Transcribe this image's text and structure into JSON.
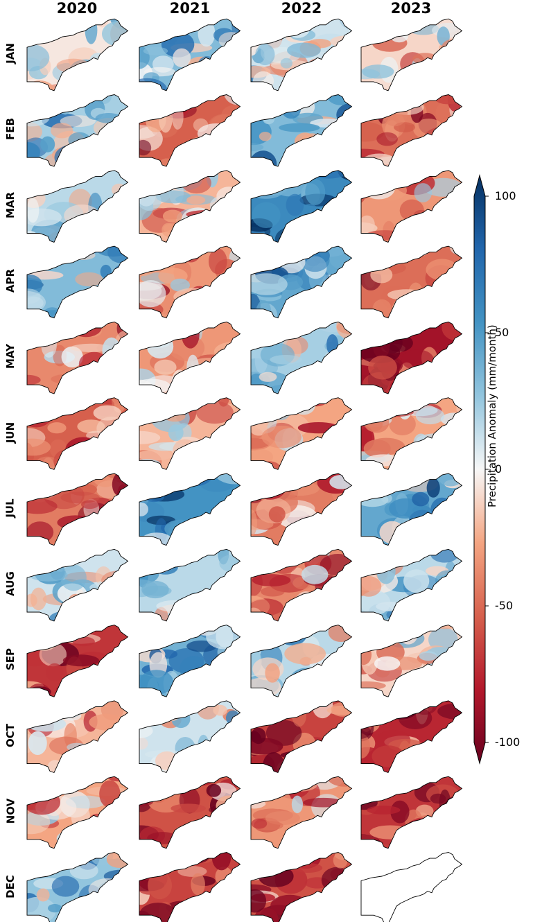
{
  "columns": [
    "2020",
    "2021",
    "2022",
    "2023"
  ],
  "rows": [
    "JAN",
    "FEB",
    "MAR",
    "APR",
    "MAY",
    "JUN",
    "JUL",
    "AUG",
    "SEP",
    "OCT",
    "NOV",
    "DEC"
  ],
  "colorbar": {
    "label": "Precipitation Anomaly (mm/month)",
    "ticks": [
      "100",
      "50",
      "0",
      "-50",
      "-100"
    ],
    "tick_values": [
      100,
      50,
      0,
      -50,
      -100
    ],
    "range": [
      -100,
      100
    ],
    "colormap": "RdBu",
    "extend": "both"
  },
  "colors": {
    "strong_blue": "#08306b",
    "blue": "#2166ac",
    "light_blue": "#92c5de",
    "white": "#f7f7f7",
    "light_red": "#f4a582",
    "red": "#d6604d",
    "strong_red": "#67001f"
  },
  "panel_mean_anomaly": [
    [
      -5,
      30,
      10,
      -10
    ],
    [
      20,
      -50,
      30,
      -45
    ],
    [
      15,
      -20,
      55,
      -30
    ],
    [
      30,
      -30,
      40,
      -45
    ],
    [
      -35,
      -30,
      20,
      -80
    ],
    [
      -50,
      -20,
      -25,
      -25
    ],
    [
      -40,
      50,
      -40,
      40
    ],
    [
      10,
      15,
      -35,
      15
    ],
    [
      -65,
      35,
      15,
      -10
    ],
    [
      -20,
      10,
      -60,
      -70
    ],
    [
      -25,
      -55,
      -30,
      -65
    ],
    [
      25,
      -60,
      -55,
      null
    ]
  ]
}
